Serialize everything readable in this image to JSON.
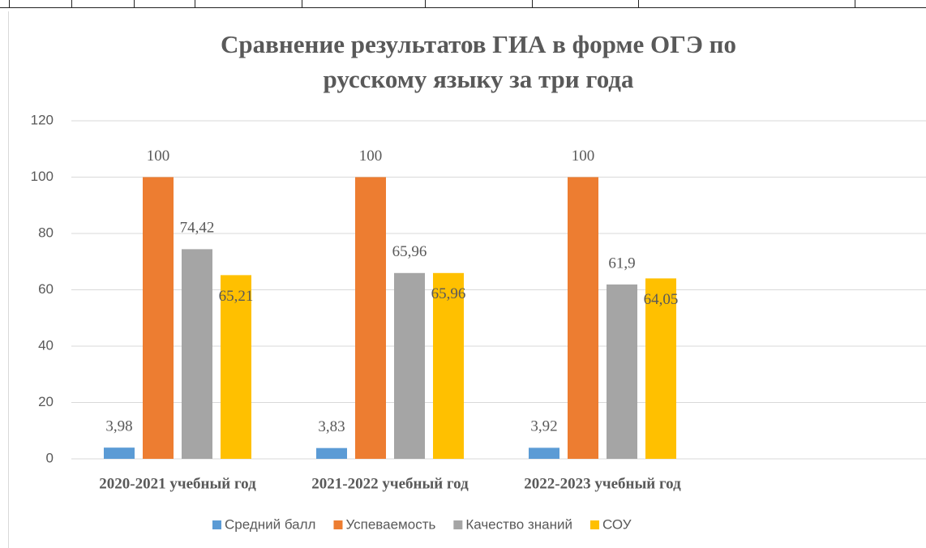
{
  "chart_data": {
    "type": "bar",
    "title": [
      "Сравнение результатов  ГИА в форме ОГЭ по",
      "русскому языку за три года"
    ],
    "categories": [
      "2020-2021 учебный год",
      "2021-2022 учебный год",
      "2022-2023 учебный год",
      null
    ],
    "series": [
      {
        "name": "Средний балл",
        "color": "#5b9bd5",
        "values": [
          3.98,
          3.83,
          3.92,
          null
        ],
        "value_labels": [
          "3,98",
          "3,83",
          "3,92",
          null
        ]
      },
      {
        "name": "Успеваемость",
        "color": "#ed7d31",
        "values": [
          100,
          100,
          100,
          null
        ],
        "value_labels": [
          "100",
          "100",
          "100",
          null
        ]
      },
      {
        "name": "Качество знаний",
        "color": "#a5a5a5",
        "values": [
          74.42,
          65.96,
          61.9,
          null
        ],
        "value_labels": [
          "74,42",
          "65,96",
          "61,9",
          null
        ]
      },
      {
        "name": "СОУ",
        "color": "#ffc000",
        "values": [
          65.21,
          65.96,
          64.05,
          null
        ],
        "value_labels": [
          "65,21",
          "65,96",
          "64,05",
          null
        ]
      }
    ],
    "ylim": [
      0,
      120
    ],
    "yticks": [
      0,
      20,
      40,
      60,
      80,
      100,
      120
    ],
    "grid": true,
    "legend": "bottom"
  }
}
